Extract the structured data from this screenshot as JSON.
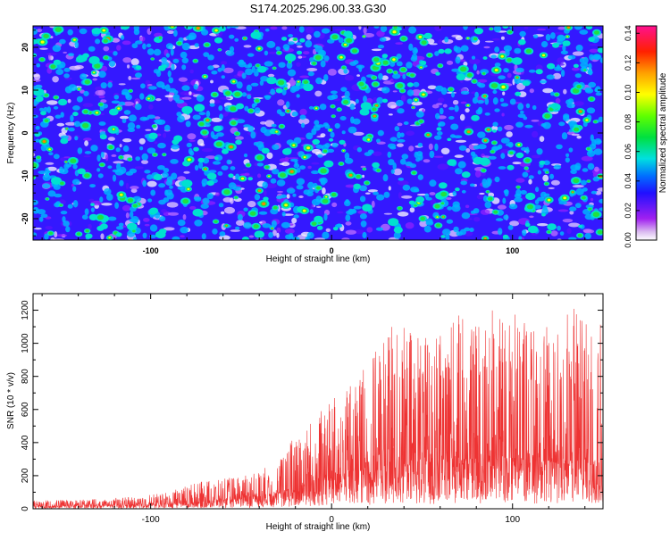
{
  "title": "S174.2025.296.00.33.G30",
  "chart_data": [
    {
      "type": "heatmap",
      "title": "S174.2025.296.00.33.G30",
      "xlabel": "Height of straight line (km)",
      "ylabel": "Frequency (Hz)",
      "xlim": [
        -165,
        150
      ],
      "ylim": [
        -25,
        25
      ],
      "xticks": [
        -100,
        0,
        100
      ],
      "yticks": [
        -20,
        -10,
        0,
        10,
        20
      ],
      "xtick_labels": [
        "-100",
        "0",
        "100"
      ],
      "ytick_labels": [
        "-20",
        "-10",
        "0",
        "10",
        "20"
      ],
      "colorbar": {
        "label": "Normalized spectral amplitude",
        "range": [
          0,
          0.145
        ],
        "ticks": [
          0.0,
          0.02,
          0.04,
          0.06,
          0.08,
          0.1,
          0.12,
          0.14
        ],
        "tick_labels": [
          "0.00",
          "0.02",
          "0.04",
          "0.06",
          "0.08",
          "0.10",
          "0.12",
          "0.14"
        ]
      }
    },
    {
      "type": "line",
      "xlabel": "Height of straight line (km)",
      "ylabel": "SNR (10 * v/v)",
      "xlim": [
        -165,
        150
      ],
      "ylim": [
        0,
        1300
      ],
      "xticks": [
        -100,
        0,
        100
      ],
      "yticks": [
        0,
        200,
        400,
        600,
        800,
        1000,
        1200
      ],
      "xtick_labels": [
        "-100",
        "0",
        "100"
      ],
      "ytick_labels": [
        "0",
        "200",
        "400",
        "600",
        "800",
        "1000",
        "1200"
      ],
      "series": [
        {
          "name": "SNR",
          "color": "#ee3333",
          "envelope": [
            {
              "x": -165,
              "base": 15,
              "peak": 50
            },
            {
              "x": -140,
              "base": 18,
              "peak": 55
            },
            {
              "x": -110,
              "base": 22,
              "peak": 70
            },
            {
              "x": -90,
              "base": 30,
              "peak": 100
            },
            {
              "x": -75,
              "base": 40,
              "peak": 160
            },
            {
              "x": -60,
              "base": 55,
              "peak": 180
            },
            {
              "x": -45,
              "base": 70,
              "peak": 210
            },
            {
              "x": -30,
              "base": 95,
              "peak": 280
            },
            {
              "x": -23,
              "base": 110,
              "peak": 420
            },
            {
              "x": -10,
              "base": 150,
              "peak": 570
            },
            {
              "x": 0,
              "base": 190,
              "peak": 650
            },
            {
              "x": 10,
              "base": 220,
              "peak": 780
            },
            {
              "x": 20,
              "base": 240,
              "peak": 880
            },
            {
              "x": 35,
              "base": 270,
              "peak": 1130
            },
            {
              "x": 50,
              "base": 290,
              "peak": 1050
            },
            {
              "x": 70,
              "base": 300,
              "peak": 1180
            },
            {
              "x": 96,
              "base": 300,
              "peak": 1230
            },
            {
              "x": 120,
              "base": 290,
              "peak": 1100
            },
            {
              "x": 143,
              "base": 285,
              "peak": 1300
            },
            {
              "x": 150,
              "base": 280,
              "peak": 1150
            }
          ]
        }
      ]
    }
  ]
}
